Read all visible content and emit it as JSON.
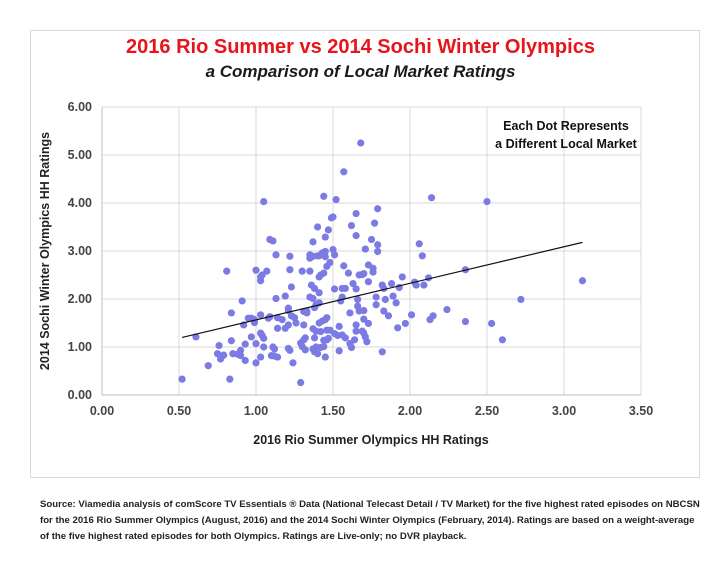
{
  "chart_data": {
    "type": "scatter",
    "title": "2016 Rio Summer vs 2014 Sochi Winter Olympics",
    "subtitle": "a Comparison of Local Market Ratings",
    "xlabel": "2016 Rio Summer Olympics HH Ratings",
    "ylabel": "2014 Sochi Winter Olympics HH Ratings",
    "xlim": [
      0,
      3.5
    ],
    "ylim": [
      0,
      6
    ],
    "xticks": [
      "0.00",
      "0.50",
      "1.00",
      "1.50",
      "2.00",
      "2.50",
      "3.00",
      "3.50"
    ],
    "yticks": [
      "0.00",
      "1.00",
      "2.00",
      "3.00",
      "4.00",
      "5.00",
      "6.00"
    ],
    "grid": true,
    "annotation": [
      "Each Dot Represents",
      "a Different Local Market"
    ],
    "dot_color": "#7b7be3",
    "trendline": {
      "x": [
        0.52,
        3.12
      ],
      "y": [
        1.2,
        3.18
      ]
    },
    "points": [
      [
        0.52,
        0.33
      ],
      [
        0.61,
        1.21
      ],
      [
        0.69,
        0.61
      ],
      [
        0.76,
        1.03
      ],
      [
        0.75,
        0.86
      ],
      [
        0.78,
        0.81
      ],
      [
        0.77,
        0.75
      ],
      [
        0.79,
        0.83
      ],
      [
        0.81,
        2.58
      ],
      [
        0.84,
        1.71
      ],
      [
        0.84,
        1.13
      ],
      [
        0.83,
        0.33
      ],
      [
        0.85,
        0.86
      ],
      [
        0.9,
        0.93
      ],
      [
        0.88,
        0.85
      ],
      [
        0.9,
        0.82
      ],
      [
        0.91,
        1.96
      ],
      [
        0.92,
        1.46
      ],
      [
        0.93,
        0.72
      ],
      [
        0.93,
        1.06
      ],
      [
        0.95,
        1.6
      ],
      [
        0.97,
        1.6
      ],
      [
        0.99,
        1.57
      ],
      [
        0.97,
        1.21
      ],
      [
        0.99,
        1.51
      ],
      [
        1.0,
        2.6
      ],
      [
        1.0,
        1.07
      ],
      [
        1.0,
        0.67
      ],
      [
        1.03,
        0.79
      ],
      [
        1.03,
        2.38
      ],
      [
        1.03,
        2.46
      ],
      [
        1.04,
        2.5
      ],
      [
        1.03,
        1.67
      ],
      [
        1.03,
        1.29
      ],
      [
        1.04,
        1.24
      ],
      [
        1.05,
        1.18
      ],
      [
        1.05,
        4.03
      ],
      [
        1.05,
        1.0
      ],
      [
        1.07,
        2.58
      ],
      [
        1.08,
        1.6
      ],
      [
        1.09,
        1.63
      ],
      [
        1.09,
        3.24
      ],
      [
        1.11,
        3.21
      ],
      [
        1.11,
        1.0
      ],
      [
        1.12,
        0.96
      ],
      [
        1.1,
        0.82
      ],
      [
        1.12,
        0.81
      ],
      [
        1.14,
        0.79
      ],
      [
        1.13,
        2.92
      ],
      [
        1.13,
        2.01
      ],
      [
        1.14,
        1.39
      ],
      [
        1.14,
        1.61
      ],
      [
        1.17,
        1.57
      ],
      [
        1.19,
        2.06
      ],
      [
        1.19,
        1.39
      ],
      [
        1.21,
        1.46
      ],
      [
        1.21,
        1.81
      ],
      [
        1.21,
        1.76
      ],
      [
        1.21,
        0.97
      ],
      [
        1.22,
        0.93
      ],
      [
        1.22,
        2.61
      ],
      [
        1.22,
        2.89
      ],
      [
        1.23,
        2.25
      ],
      [
        1.23,
        1.65
      ],
      [
        1.25,
        1.61
      ],
      [
        1.26,
        1.5
      ],
      [
        1.24,
        0.67
      ],
      [
        1.3,
        2.58
      ],
      [
        1.29,
        0.26
      ],
      [
        1.29,
        1.08
      ],
      [
        1.3,
        1.01
      ],
      [
        1.32,
        0.94
      ],
      [
        1.31,
        1.15
      ],
      [
        1.32,
        1.19
      ],
      [
        1.31,
        1.46
      ],
      [
        1.31,
        1.74
      ],
      [
        1.33,
        1.71
      ],
      [
        1.33,
        1.75
      ],
      [
        1.35,
        2.92
      ],
      [
        1.35,
        2.85
      ],
      [
        1.37,
        2.89
      ],
      [
        1.35,
        2.58
      ],
      [
        1.35,
        2.04
      ],
      [
        1.37,
        2.01
      ],
      [
        1.36,
        2.29
      ],
      [
        1.38,
        2.22
      ],
      [
        1.37,
        0.96
      ],
      [
        1.38,
        0.9
      ],
      [
        1.4,
        0.86
      ],
      [
        1.39,
        1.0
      ],
      [
        1.37,
        3.19
      ],
      [
        1.37,
        1.38
      ],
      [
        1.39,
        1.33
      ],
      [
        1.38,
        1.19
      ],
      [
        1.38,
        1.82
      ],
      [
        1.39,
        1.88
      ],
      [
        1.4,
        3.5
      ],
      [
        1.4,
        2.9
      ],
      [
        1.41,
        2.9
      ],
      [
        1.43,
        2.96
      ],
      [
        1.45,
        2.99
      ],
      [
        1.41,
        2.46
      ],
      [
        1.42,
        2.5
      ],
      [
        1.44,
        2.54
      ],
      [
        1.41,
        2.13
      ],
      [
        1.41,
        1.92
      ],
      [
        1.41,
        1.5
      ],
      [
        1.43,
        1.54
      ],
      [
        1.45,
        1.57
      ],
      [
        1.46,
        1.61
      ],
      [
        1.42,
        1.32
      ],
      [
        1.42,
        0.99
      ],
      [
        1.44,
        1.01
      ],
      [
        1.45,
        0.79
      ],
      [
        1.44,
        1.14
      ],
      [
        1.44,
        4.14
      ],
      [
        1.45,
        3.29
      ],
      [
        1.45,
        2.88
      ],
      [
        1.46,
        1.15
      ],
      [
        1.47,
        1.18
      ],
      [
        1.46,
        1.35
      ],
      [
        1.48,
        1.35
      ],
      [
        1.46,
        2.68
      ],
      [
        1.48,
        2.76
      ],
      [
        1.47,
        3.44
      ],
      [
        1.49,
        3.69
      ],
      [
        1.5,
        3.71
      ],
      [
        1.5,
        3.03
      ],
      [
        1.51,
        2.92
      ],
      [
        1.51,
        2.21
      ],
      [
        1.51,
        1.28
      ],
      [
        1.53,
        1.24
      ],
      [
        1.52,
        4.07
      ],
      [
        1.54,
        1.43
      ],
      [
        1.54,
        0.92
      ],
      [
        1.55,
        1.96
      ],
      [
        1.56,
        2.04
      ],
      [
        1.56,
        2.22
      ],
      [
        1.58,
        2.22
      ],
      [
        1.56,
        1.25
      ],
      [
        1.58,
        1.19
      ],
      [
        1.57,
        4.65
      ],
      [
        1.57,
        2.69
      ],
      [
        1.6,
        2.54
      ],
      [
        1.61,
        1.71
      ],
      [
        1.61,
        1.07
      ],
      [
        1.62,
        0.99
      ],
      [
        1.62,
        3.53
      ],
      [
        1.63,
        2.32
      ],
      [
        1.64,
        1.15
      ],
      [
        1.65,
        1.46
      ],
      [
        1.65,
        1.33
      ],
      [
        1.65,
        3.78
      ],
      [
        1.65,
        3.32
      ],
      [
        1.65,
        2.21
      ],
      [
        1.66,
        1.99
      ],
      [
        1.66,
        1.85
      ],
      [
        1.67,
        1.75
      ],
      [
        1.67,
        2.5
      ],
      [
        1.69,
        2.51
      ],
      [
        1.7,
        2.53
      ],
      [
        1.68,
        5.25
      ],
      [
        1.69,
        1.33
      ],
      [
        1.7,
        1.29
      ],
      [
        1.71,
        1.21
      ],
      [
        1.72,
        1.11
      ],
      [
        1.7,
        1.58
      ],
      [
        1.7,
        1.76
      ],
      [
        1.71,
        3.04
      ],
      [
        1.73,
        2.36
      ],
      [
        1.73,
        2.71
      ],
      [
        1.73,
        1.49
      ],
      [
        1.75,
        3.24
      ],
      [
        1.76,
        2.64
      ],
      [
        1.76,
        2.56
      ],
      [
        1.77,
        3.58
      ],
      [
        1.78,
        2.04
      ],
      [
        1.78,
        1.88
      ],
      [
        1.79,
        3.88
      ],
      [
        1.79,
        2.99
      ],
      [
        1.79,
        3.13
      ],
      [
        1.82,
        0.9
      ],
      [
        1.82,
        2.29
      ],
      [
        1.83,
        2.22
      ],
      [
        1.83,
        1.75
      ],
      [
        1.84,
        1.99
      ],
      [
        1.86,
        1.65
      ],
      [
        1.88,
        2.32
      ],
      [
        1.89,
        2.06
      ],
      [
        1.91,
        1.92
      ],
      [
        1.92,
        1.4
      ],
      [
        1.93,
        2.24
      ],
      [
        1.95,
        2.46
      ],
      [
        1.97,
        1.49
      ],
      [
        2.01,
        1.67
      ],
      [
        2.03,
        2.35
      ],
      [
        2.04,
        2.29
      ],
      [
        2.06,
        3.15
      ],
      [
        2.08,
        2.9
      ],
      [
        2.09,
        2.29
      ],
      [
        2.12,
        2.44
      ],
      [
        2.13,
        1.57
      ],
      [
        2.15,
        1.65
      ],
      [
        2.14,
        4.11
      ],
      [
        2.24,
        1.78
      ],
      [
        2.36,
        2.61
      ],
      [
        2.36,
        1.53
      ],
      [
        2.5,
        4.03
      ],
      [
        2.53,
        1.49
      ],
      [
        2.6,
        1.15
      ],
      [
        2.72,
        1.99
      ],
      [
        3.12,
        2.38
      ]
    ]
  },
  "source": "Source: Viamedia analysis of comScore TV Essentials ® Data (National Telecast Detail / TV Market) for the five highest rated episodes on NBCSN for the 2016 Rio Summer Olympics (August, 2016) and the 2014 Sochi Winter Olympics (February, 2014). Ratings are based on a weight-average of the five highest rated episodes for both Olympics. Ratings are Live-only; no DVR playback."
}
